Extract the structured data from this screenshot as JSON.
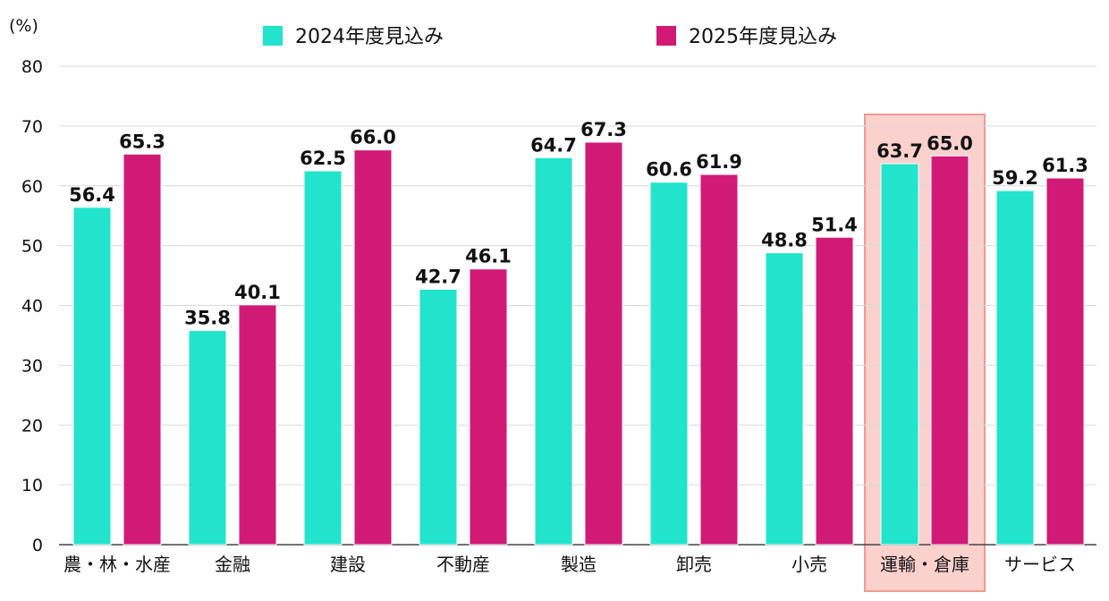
{
  "chart_data": {
    "type": "bar",
    "unit_label": "(%)",
    "ylim": [
      0,
      80
    ],
    "yticks": [
      0,
      10,
      20,
      30,
      40,
      50,
      60,
      70,
      80
    ],
    "grid": true,
    "legend_position": "top",
    "categories": [
      "農・林・水産",
      "金融",
      "建設",
      "不動産",
      "製造",
      "卸売",
      "小売",
      "運輸・倉庫",
      "サービス"
    ],
    "highlight_category": "運輸・倉庫",
    "highlight_color": "#f9c6c0",
    "series": [
      {
        "name": "2024年度見込み",
        "color": "#22e3cb",
        "values": [
          56.4,
          35.8,
          62.5,
          42.7,
          64.7,
          60.6,
          48.8,
          63.7,
          59.2
        ]
      },
      {
        "name": "2025年度見込み",
        "color": "#d11a75",
        "values": [
          65.3,
          40.1,
          66.0,
          46.1,
          67.3,
          61.9,
          51.4,
          65.0,
          61.3
        ]
      }
    ]
  }
}
